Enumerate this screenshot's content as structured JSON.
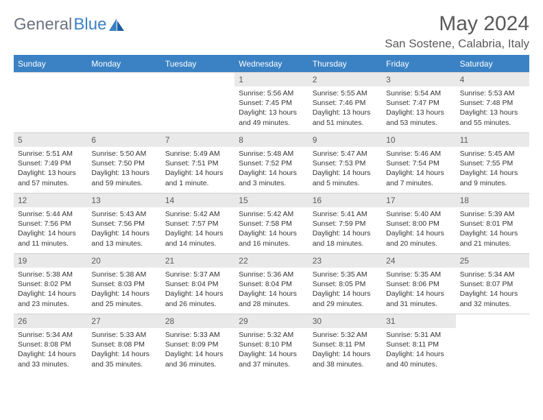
{
  "brand": {
    "part1": "General",
    "part2": "Blue"
  },
  "title": "May 2024",
  "location": "San Sostene, Calabria, Italy",
  "colors": {
    "header_bg": "#3b82c4",
    "header_text": "#ffffff",
    "daynum_bg": "#e9e9e9",
    "text": "#595959",
    "body_text": "#333333",
    "page_bg": "#ffffff"
  },
  "fonts": {
    "title_size": 30,
    "location_size": 17,
    "dow_size": 12,
    "body_size": 10.5
  },
  "dow": [
    "Sunday",
    "Monday",
    "Tuesday",
    "Wednesday",
    "Thursday",
    "Friday",
    "Saturday"
  ],
  "layout": {
    "grid_cols": 7,
    "leading_blank": 3,
    "trailing_blank": 1
  },
  "days": [
    {
      "n": 1,
      "sunrise": "5:56 AM",
      "sunset": "7:45 PM",
      "dl_h": 13,
      "dl_m": 49
    },
    {
      "n": 2,
      "sunrise": "5:55 AM",
      "sunset": "7:46 PM",
      "dl_h": 13,
      "dl_m": 51
    },
    {
      "n": 3,
      "sunrise": "5:54 AM",
      "sunset": "7:47 PM",
      "dl_h": 13,
      "dl_m": 53
    },
    {
      "n": 4,
      "sunrise": "5:53 AM",
      "sunset": "7:48 PM",
      "dl_h": 13,
      "dl_m": 55
    },
    {
      "n": 5,
      "sunrise": "5:51 AM",
      "sunset": "7:49 PM",
      "dl_h": 13,
      "dl_m": 57
    },
    {
      "n": 6,
      "sunrise": "5:50 AM",
      "sunset": "7:50 PM",
      "dl_h": 13,
      "dl_m": 59
    },
    {
      "n": 7,
      "sunrise": "5:49 AM",
      "sunset": "7:51 PM",
      "dl_h": 14,
      "dl_m": 1
    },
    {
      "n": 8,
      "sunrise": "5:48 AM",
      "sunset": "7:52 PM",
      "dl_h": 14,
      "dl_m": 3
    },
    {
      "n": 9,
      "sunrise": "5:47 AM",
      "sunset": "7:53 PM",
      "dl_h": 14,
      "dl_m": 5
    },
    {
      "n": 10,
      "sunrise": "5:46 AM",
      "sunset": "7:54 PM",
      "dl_h": 14,
      "dl_m": 7
    },
    {
      "n": 11,
      "sunrise": "5:45 AM",
      "sunset": "7:55 PM",
      "dl_h": 14,
      "dl_m": 9
    },
    {
      "n": 12,
      "sunrise": "5:44 AM",
      "sunset": "7:56 PM",
      "dl_h": 14,
      "dl_m": 11
    },
    {
      "n": 13,
      "sunrise": "5:43 AM",
      "sunset": "7:56 PM",
      "dl_h": 14,
      "dl_m": 13
    },
    {
      "n": 14,
      "sunrise": "5:42 AM",
      "sunset": "7:57 PM",
      "dl_h": 14,
      "dl_m": 14
    },
    {
      "n": 15,
      "sunrise": "5:42 AM",
      "sunset": "7:58 PM",
      "dl_h": 14,
      "dl_m": 16
    },
    {
      "n": 16,
      "sunrise": "5:41 AM",
      "sunset": "7:59 PM",
      "dl_h": 14,
      "dl_m": 18
    },
    {
      "n": 17,
      "sunrise": "5:40 AM",
      "sunset": "8:00 PM",
      "dl_h": 14,
      "dl_m": 20
    },
    {
      "n": 18,
      "sunrise": "5:39 AM",
      "sunset": "8:01 PM",
      "dl_h": 14,
      "dl_m": 21
    },
    {
      "n": 19,
      "sunrise": "5:38 AM",
      "sunset": "8:02 PM",
      "dl_h": 14,
      "dl_m": 23
    },
    {
      "n": 20,
      "sunrise": "5:38 AM",
      "sunset": "8:03 PM",
      "dl_h": 14,
      "dl_m": 25
    },
    {
      "n": 21,
      "sunrise": "5:37 AM",
      "sunset": "8:04 PM",
      "dl_h": 14,
      "dl_m": 26
    },
    {
      "n": 22,
      "sunrise": "5:36 AM",
      "sunset": "8:04 PM",
      "dl_h": 14,
      "dl_m": 28
    },
    {
      "n": 23,
      "sunrise": "5:35 AM",
      "sunset": "8:05 PM",
      "dl_h": 14,
      "dl_m": 29
    },
    {
      "n": 24,
      "sunrise": "5:35 AM",
      "sunset": "8:06 PM",
      "dl_h": 14,
      "dl_m": 31
    },
    {
      "n": 25,
      "sunrise": "5:34 AM",
      "sunset": "8:07 PM",
      "dl_h": 14,
      "dl_m": 32
    },
    {
      "n": 26,
      "sunrise": "5:34 AM",
      "sunset": "8:08 PM",
      "dl_h": 14,
      "dl_m": 33
    },
    {
      "n": 27,
      "sunrise": "5:33 AM",
      "sunset": "8:08 PM",
      "dl_h": 14,
      "dl_m": 35
    },
    {
      "n": 28,
      "sunrise": "5:33 AM",
      "sunset": "8:09 PM",
      "dl_h": 14,
      "dl_m": 36
    },
    {
      "n": 29,
      "sunrise": "5:32 AM",
      "sunset": "8:10 PM",
      "dl_h": 14,
      "dl_m": 37
    },
    {
      "n": 30,
      "sunrise": "5:32 AM",
      "sunset": "8:11 PM",
      "dl_h": 14,
      "dl_m": 38
    },
    {
      "n": 31,
      "sunrise": "5:31 AM",
      "sunset": "8:11 PM",
      "dl_h": 14,
      "dl_m": 40
    }
  ],
  "labels": {
    "sunrise": "Sunrise:",
    "sunset": "Sunset:",
    "daylight": "Daylight:",
    "hours": "hours",
    "and": "and",
    "minutes": "minutes.",
    "minute": "minute."
  }
}
